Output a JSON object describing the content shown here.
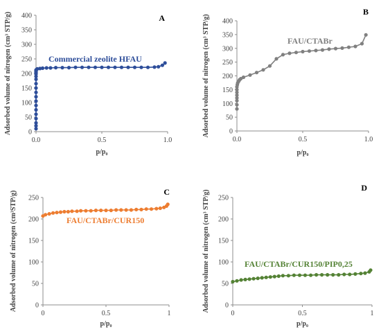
{
  "chart_data": [
    {
      "type": "scatter",
      "panel": "A",
      "xlabel": "p/p₀",
      "ylabel": "Adsorbed volume of nitrogen  (cm³ STP/g)",
      "xlim": [
        0,
        1
      ],
      "ylim": [
        0,
        400
      ],
      "x_ticks": [
        "0.0",
        "0.5",
        "1.0"
      ],
      "y_ticks": [
        "0",
        "50",
        "100",
        "150",
        "200",
        "250",
        "300",
        "350",
        "400"
      ],
      "series": [
        {
          "name": "Commercial zeolite HFAU",
          "color": "#2e4e9a",
          "x": [
            0.0,
            0.0,
            0.0,
            0.0,
            0.0,
            0.0,
            0.0,
            0.0,
            0.0,
            0.0,
            0.0,
            0.0,
            0.0,
            0.0,
            0.0,
            0.0,
            0.0,
            0.0,
            0.0,
            0.005,
            0.01,
            0.03,
            0.05,
            0.08,
            0.11,
            0.15,
            0.2,
            0.25,
            0.3,
            0.35,
            0.4,
            0.45,
            0.5,
            0.55,
            0.6,
            0.65,
            0.7,
            0.75,
            0.8,
            0.85,
            0.9,
            0.93,
            0.96,
            0.98
          ],
          "y": [
            10,
            20,
            30,
            45,
            60,
            75,
            90,
            105,
            120,
            135,
            150,
            165,
            180,
            190,
            198,
            203,
            207,
            210,
            212,
            214,
            216,
            217,
            218,
            219,
            219,
            220,
            220,
            220,
            221,
            221,
            221,
            221,
            221,
            221,
            221,
            221,
            221,
            221,
            221,
            221,
            222,
            223,
            228,
            236
          ]
        }
      ]
    },
    {
      "type": "scatter",
      "panel": "B",
      "xlabel": "p/p₀",
      "ylabel": "Adsorbed volume of nitrogen  (cm³ STP/g)",
      "xlim": [
        0,
        1
      ],
      "ylim": [
        0,
        400
      ],
      "x_ticks": [
        "0.0",
        "0.5",
        "1.0"
      ],
      "y_ticks": [
        "0",
        "50",
        "100",
        "150",
        "200",
        "250",
        "300",
        "350",
        "400"
      ],
      "series": [
        {
          "name": "FAU/CTABr",
          "color": "#808080",
          "x": [
            0.0,
            0.0,
            0.0,
            0.0,
            0.0,
            0.0,
            0.0,
            0.0,
            0.003,
            0.006,
            0.01,
            0.015,
            0.02,
            0.03,
            0.05,
            0.1,
            0.15,
            0.2,
            0.25,
            0.3,
            0.35,
            0.4,
            0.45,
            0.5,
            0.55,
            0.6,
            0.65,
            0.7,
            0.75,
            0.8,
            0.85,
            0.9,
            0.95,
            0.98
          ],
          "y": [
            80,
            95,
            110,
            120,
            130,
            140,
            150,
            160,
            168,
            174,
            178,
            182,
            186,
            190,
            195,
            203,
            212,
            222,
            236,
            262,
            277,
            282,
            285,
            288,
            290,
            292,
            294,
            297,
            299,
            301,
            304,
            307,
            317,
            349
          ]
        }
      ]
    },
    {
      "type": "scatter",
      "panel": "C",
      "xlabel": "p/p₀",
      "ylabel": "Adsorbed volume of nitrogen  (cm³STP/g)",
      "xlim": [
        0,
        1
      ],
      "ylim": [
        0,
        250
      ],
      "x_ticks": [
        "0",
        "0.5",
        "1"
      ],
      "y_ticks": [
        "0",
        "50",
        "100",
        "150",
        "200",
        "250"
      ],
      "series": [
        {
          "name": "FAU/CTABr/CUR150",
          "color": "#ed7d31",
          "x": [
            0.0,
            0.02,
            0.05,
            0.08,
            0.11,
            0.14,
            0.17,
            0.2,
            0.23,
            0.27,
            0.3,
            0.34,
            0.38,
            0.42,
            0.46,
            0.5,
            0.54,
            0.58,
            0.62,
            0.66,
            0.7,
            0.74,
            0.78,
            0.82,
            0.86,
            0.9,
            0.93,
            0.96,
            0.98,
            0.99
          ],
          "y": [
            207,
            210,
            212,
            214,
            215,
            216,
            217,
            217,
            218,
            218,
            219,
            219,
            219,
            220,
            220,
            220,
            220,
            221,
            221,
            221,
            221,
            222,
            222,
            223,
            223,
            224,
            225,
            227,
            230,
            234
          ]
        }
      ]
    },
    {
      "type": "scatter",
      "panel": "D",
      "xlabel": "p/p₀",
      "ylabel": "Adsorbed volume of nitrogen  (cm³ STP/g)",
      "xlim": [
        0,
        1
      ],
      "ylim": [
        0,
        250
      ],
      "x_ticks": [
        "0",
        "0.5",
        "1"
      ],
      "y_ticks": [
        "0",
        "50",
        "100",
        "150",
        "200",
        "250"
      ],
      "series": [
        {
          "name": "FAU/CTABr/CUR150/PIP0,25",
          "color": "#548235",
          "x": [
            0.0,
            0.03,
            0.06,
            0.09,
            0.12,
            0.15,
            0.18,
            0.21,
            0.24,
            0.27,
            0.3,
            0.33,
            0.36,
            0.4,
            0.44,
            0.48,
            0.52,
            0.56,
            0.6,
            0.64,
            0.68,
            0.72,
            0.76,
            0.8,
            0.84,
            0.88,
            0.92,
            0.95,
            0.98,
            0.99
          ],
          "y": [
            54,
            56,
            58,
            59,
            60,
            61,
            62,
            63,
            64,
            65,
            66,
            67,
            68,
            68,
            69,
            69,
            69,
            69,
            70,
            70,
            70,
            70,
            70,
            71,
            71,
            72,
            73,
            74,
            77,
            81
          ]
        }
      ]
    }
  ]
}
